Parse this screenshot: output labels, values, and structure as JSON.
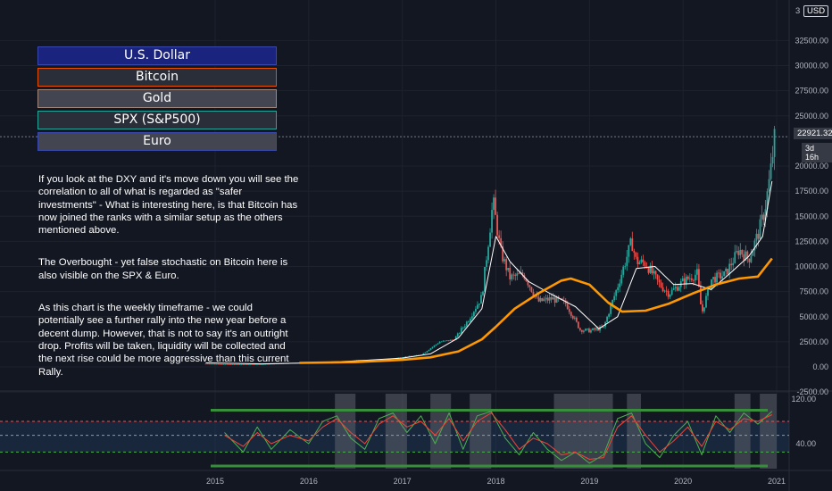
{
  "legend": [
    {
      "label": "U.S. Dollar",
      "bg": "#1a237e",
      "border": "#3949ab"
    },
    {
      "label": "Bitcoin",
      "bg": "#2a2e39",
      "border": "#e65100"
    },
    {
      "label": "Gold",
      "bg": "#434651",
      "border": "#a1887f"
    },
    {
      "label": "SPX (S&P500)",
      "bg": "#2a2e39",
      "border": "#26a69a"
    },
    {
      "label": "Euro",
      "bg": "#434651",
      "border": "#3949ab"
    }
  ],
  "notes": [
    "If you look at the DXY and it's move down you will see the correlation to all of what is regarded as \"safer investments\" - What is interesting here, is that Bitcoin has now joined the ranks with a similar setup as the others mentioned above.",
    "The Overbought - yet false stochastic on Bitcoin here is also visible on the SPX & Euro.",
    "As this chart is the weekly timeframe - we could potentially see a further rally into the new year before a decent dump. However, that is not to say it's an outright drop. Profits will be taken, liquidity will be collected and the next rise could be more aggressive than this current Rally."
  ],
  "price_axis": {
    "currency": "USD",
    "top_label_partial": "3",
    "last_price": "22921.32",
    "countdown": "3d 16h"
  },
  "chart_data": [
    {
      "type": "line",
      "title": "",
      "x_labels": [
        "2015",
        "2016",
        "2017",
        "2018",
        "2019",
        "2020",
        "2021"
      ],
      "y_ticks": [
        "32500.00",
        "30000.00",
        "27500.00",
        "25000.00",
        "20000.00",
        "17500.00",
        "15000.00",
        "12500.00",
        "10000.00",
        "7500.00",
        "5000.00",
        "2500.00",
        "0.00",
        "-2500.00"
      ],
      "ylim": [
        -2500,
        35000
      ],
      "last_price": 22921.32,
      "series": [
        {
          "role": "price_close",
          "color": "#26a69a",
          "x": [
            2014.9,
            2015.2,
            2015.5,
            2015.8,
            2016.0,
            2016.3,
            2016.5,
            2016.8,
            2017.0,
            2017.2,
            2017.4,
            2017.55,
            2017.7,
            2017.85,
            2017.97,
            2018.05,
            2018.15,
            2018.3,
            2018.45,
            2018.6,
            2018.75,
            2018.9,
            2019.0,
            2019.15,
            2019.3,
            2019.45,
            2019.5,
            2019.6,
            2019.75,
            2019.85,
            2020.0,
            2020.15,
            2020.2,
            2020.3,
            2020.45,
            2020.6,
            2020.7,
            2020.8,
            2020.87,
            2020.93,
            2020.98
          ],
          "y": [
            320,
            250,
            270,
            380,
            430,
            420,
            660,
            700,
            980,
            1180,
            2500,
            2700,
            4600,
            7000,
            16500,
            11500,
            8900,
            9200,
            6500,
            6800,
            6300,
            3700,
            3600,
            3900,
            8000,
            12500,
            10500,
            10300,
            8200,
            7300,
            8500,
            9300,
            5300,
            8700,
            9200,
            11700,
            10700,
            13200,
            15500,
            19000,
            22921
          ]
        },
        {
          "role": "moving_average_short",
          "color": "#ffffff",
          "x": [
            2014.9,
            2015.5,
            2016.0,
            2016.5,
            2017.0,
            2017.3,
            2017.6,
            2017.85,
            2018.0,
            2018.15,
            2018.35,
            2018.6,
            2018.85,
            2019.1,
            2019.3,
            2019.5,
            2019.7,
            2019.9,
            2020.1,
            2020.3,
            2020.5,
            2020.7,
            2020.85,
            2020.95
          ],
          "y": [
            400,
            300,
            400,
            600,
            880,
            1300,
            2900,
            5800,
            13000,
            10500,
            8500,
            7200,
            6000,
            3800,
            5000,
            9800,
            10000,
            8200,
            8300,
            7700,
            9300,
            11000,
            13000,
            18500
          ]
        },
        {
          "role": "moving_average_long",
          "color": "#ff9800",
          "x": [
            2015.9,
            2016.5,
            2017.0,
            2017.3,
            2017.6,
            2017.85,
            2018.0,
            2018.2,
            2018.45,
            2018.7,
            2018.8,
            2019.0,
            2019.2,
            2019.35,
            2019.6,
            2019.85,
            2020.1,
            2020.35,
            2020.6,
            2020.8,
            2020.95
          ],
          "y": [
            400,
            480,
            700,
            950,
            1550,
            2750,
            4000,
            5800,
            7300,
            8600,
            8800,
            8200,
            6400,
            5500,
            5600,
            6300,
            7300,
            8200,
            8800,
            9000,
            10800
          ]
        }
      ]
    },
    {
      "type": "line",
      "title": "",
      "y_ticks": [
        "120.00",
        "40.00"
      ],
      "ylim": [
        -5,
        125
      ],
      "levels": [
        0,
        25,
        55,
        80,
        100
      ],
      "overbought_highlight_years": [
        [
          2016.28,
          2016.5
        ],
        [
          2016.82,
          2017.05
        ],
        [
          2017.3,
          2017.52
        ],
        [
          2017.72,
          2017.95
        ],
        [
          2018.62,
          2019.25
        ],
        [
          2019.4,
          2019.55
        ],
        [
          2020.55,
          2020.72
        ],
        [
          2020.82,
          2021.0
        ]
      ],
      "series": [
        {
          "role": "k",
          "color": "#4caf50",
          "x": [
            2015.1,
            2015.3,
            2015.45,
            2015.6,
            2015.8,
            2016.0,
            2016.15,
            2016.3,
            2016.45,
            2016.6,
            2016.75,
            2016.9,
            2017.05,
            2017.2,
            2017.35,
            2017.5,
            2017.65,
            2017.8,
            2017.95,
            2018.1,
            2018.25,
            2018.4,
            2018.55,
            2018.7,
            2018.85,
            2019.0,
            2019.15,
            2019.3,
            2019.45,
            2019.6,
            2019.75,
            2019.9,
            2020.05,
            2020.2,
            2020.35,
            2020.5,
            2020.65,
            2020.8,
            2020.95
          ],
          "y": [
            60,
            25,
            70,
            30,
            65,
            40,
            80,
            90,
            50,
            30,
            85,
            95,
            60,
            90,
            40,
            95,
            30,
            90,
            98,
            50,
            20,
            60,
            30,
            10,
            25,
            5,
            20,
            85,
            95,
            40,
            15,
            55,
            80,
            20,
            90,
            60,
            95,
            75,
            98
          ]
        },
        {
          "role": "d",
          "color": "#f44336",
          "x": [
            2015.1,
            2015.3,
            2015.45,
            2015.6,
            2015.8,
            2016.0,
            2016.15,
            2016.3,
            2016.45,
            2016.6,
            2016.75,
            2016.9,
            2017.05,
            2017.2,
            2017.35,
            2017.5,
            2017.65,
            2017.8,
            2017.95,
            2018.1,
            2018.25,
            2018.4,
            2018.55,
            2018.7,
            2018.85,
            2019.0,
            2019.15,
            2019.3,
            2019.45,
            2019.6,
            2019.75,
            2019.9,
            2020.05,
            2020.2,
            2020.35,
            2020.5,
            2020.65,
            2020.8,
            2020.95
          ],
          "y": [
            55,
            35,
            60,
            40,
            55,
            45,
            70,
            85,
            60,
            40,
            75,
            90,
            70,
            80,
            55,
            85,
            45,
            80,
            95,
            65,
            30,
            50,
            40,
            20,
            25,
            12,
            15,
            70,
            90,
            55,
            25,
            45,
            70,
            35,
            80,
            65,
            85,
            80,
            92
          ]
        }
      ]
    }
  ]
}
